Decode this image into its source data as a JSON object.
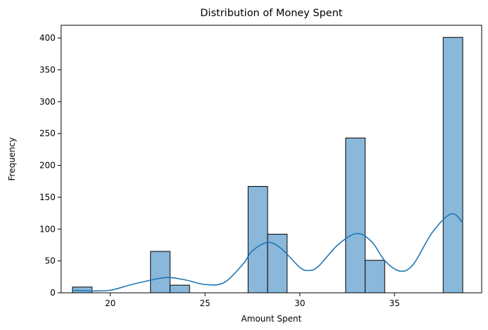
{
  "chart_data": {
    "type": "bar",
    "title": "Distribution of Money Spent",
    "xlabel": "Amount Spent",
    "ylabel": "Frequency",
    "xlim": [
      17.4,
      39.6
    ],
    "ylim": [
      0,
      420
    ],
    "x_ticks": [
      20,
      25,
      30,
      35
    ],
    "y_ticks": [
      0,
      50,
      100,
      150,
      200,
      250,
      300,
      350,
      400
    ],
    "bin_edges": [
      18.0,
      19.03,
      20.06,
      21.09,
      22.12,
      23.15,
      24.18,
      25.21,
      26.24,
      27.27,
      28.3,
      29.33,
      30.36,
      31.39,
      32.42,
      33.45,
      34.48,
      35.51,
      36.54,
      37.57,
      38.6
    ],
    "counts": [
      9,
      0,
      0,
      0,
      65,
      12,
      0,
      0,
      0,
      167,
      92,
      0,
      0,
      0,
      243,
      51,
      0,
      0,
      0,
      401
    ],
    "bar_fill": "#89b8da",
    "bar_edge": "#000000",
    "kde_color": "#1f77b4",
    "kde": {
      "x": [
        18.0,
        19.0,
        20.0,
        21.0,
        22.0,
        23.0,
        24.0,
        25.0,
        26.0,
        27.0,
        27.5,
        28.3,
        29.0,
        30.0,
        30.5,
        31.0,
        32.0,
        33.0,
        33.8,
        34.5,
        35.3,
        36.0,
        37.0,
        38.0,
        38.6
      ],
      "y": [
        4,
        3,
        4,
        12,
        19,
        24,
        20,
        13,
        16,
        45,
        66,
        79,
        70,
        40,
        35,
        42,
        75,
        93,
        80,
        50,
        34,
        45,
        95,
        124,
        110
      ]
    },
    "grid": false,
    "legend": "none"
  }
}
